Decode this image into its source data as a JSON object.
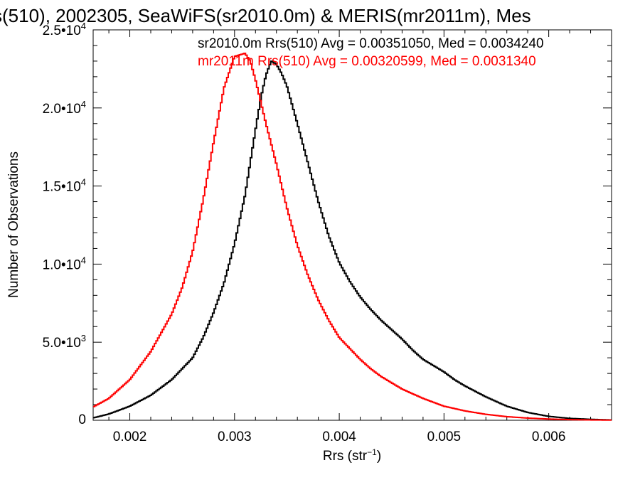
{
  "chart_data": {
    "type": "line",
    "title": "s(510), 2002305, SeaWiFS(sr2010.0m) & MERIS(mr2011m), Mes",
    "xlabel": "Rrs (str",
    "xlabel_sup": "−1",
    "xlabel_close": ")",
    "ylabel": "Number of Observations",
    "xlim": [
      0.00165,
      0.0066
    ],
    "ylim": [
      0,
      25000
    ],
    "grid": false,
    "step": true,
    "x_ticks": [
      {
        "value": 0.002,
        "label": "0.002"
      },
      {
        "value": 0.003,
        "label": "0.003"
      },
      {
        "value": 0.004,
        "label": "0.004"
      },
      {
        "value": 0.005,
        "label": "0.005"
      },
      {
        "value": 0.006,
        "label": "0.006"
      }
    ],
    "y_ticks": [
      {
        "value": 0,
        "mant": "0",
        "exp": ""
      },
      {
        "value": 5000,
        "mant": "5.0•10",
        "exp": "3"
      },
      {
        "value": 10000,
        "mant": "1.0•10",
        "exp": "4"
      },
      {
        "value": 15000,
        "mant": "1.5•10",
        "exp": "4"
      },
      {
        "value": 20000,
        "mant": "2.0•10",
        "exp": "4"
      },
      {
        "value": 25000,
        "mant": "2.5•10",
        "exp": "4"
      }
    ],
    "x_minor_step": 0.0002,
    "y_minor_step": 1000,
    "annotations": [
      {
        "text": "sr2010.0m Rrs(510) Avg = 0.00351050, Med = 0.0034240",
        "color": "#000000"
      },
      {
        "text": "mr2011m Rrs(510) Avg = 0.00320599, Med = 0.0031340",
        "color": "#ff0000"
      }
    ],
    "series": [
      {
        "color": "#000000",
        "x": [
          0.00165,
          0.0018,
          0.002,
          0.0022,
          0.0024,
          0.0026,
          0.0027,
          0.0028,
          0.0029,
          0.003,
          0.0031,
          0.00315,
          0.0032,
          0.00325,
          0.0033,
          0.00335,
          0.0034,
          0.00345,
          0.0035,
          0.0036,
          0.0037,
          0.0038,
          0.0039,
          0.004,
          0.0041,
          0.0042,
          0.0043,
          0.0044,
          0.0045,
          0.0046,
          0.0047,
          0.0048,
          0.0049,
          0.005,
          0.0051,
          0.0052,
          0.0054,
          0.0056,
          0.0058,
          0.006,
          0.0062,
          0.0064,
          0.0066
        ],
        "values": [
          150,
          400,
          900,
          1600,
          2600,
          4000,
          5300,
          6900,
          8800,
          11300,
          14400,
          16500,
          18600,
          20600,
          22100,
          23000,
          22800,
          22200,
          21400,
          19000,
          16500,
          14000,
          11800,
          10100,
          8900,
          7900,
          7100,
          6400,
          5800,
          5200,
          4500,
          3900,
          3500,
          3100,
          2600,
          2200,
          1500,
          900,
          500,
          250,
          120,
          60,
          20
        ]
      },
      {
        "color": "#ff0000",
        "x": [
          0.00165,
          0.0018,
          0.002,
          0.0022,
          0.0024,
          0.0025,
          0.0026,
          0.0027,
          0.0028,
          0.0029,
          0.003,
          0.0031,
          0.00315,
          0.0032,
          0.00325,
          0.0033,
          0.0034,
          0.0035,
          0.0036,
          0.0037,
          0.0038,
          0.0039,
          0.004,
          0.0041,
          0.0042,
          0.0043,
          0.0044,
          0.0045,
          0.0046,
          0.0047,
          0.0048,
          0.0049,
          0.005,
          0.0051,
          0.0052,
          0.0054,
          0.0056,
          0.0058,
          0.006,
          0.0062,
          0.0064,
          0.0066
        ],
        "values": [
          850,
          1400,
          2600,
          4400,
          6800,
          8500,
          10800,
          14100,
          17800,
          21300,
          23300,
          23500,
          23000,
          21800,
          20400,
          19000,
          16400,
          13600,
          11200,
          9300,
          7700,
          6400,
          5300,
          4600,
          3900,
          3300,
          2800,
          2400,
          2000,
          1700,
          1400,
          1150,
          900,
          750,
          600,
          380,
          230,
          140,
          80,
          40,
          20,
          10
        ]
      }
    ]
  }
}
